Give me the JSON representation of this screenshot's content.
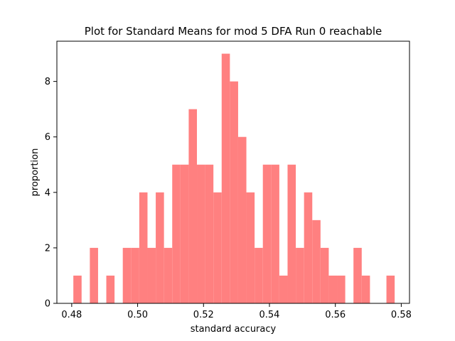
{
  "chart_data": {
    "type": "bar",
    "title": "Plot for Standard Means for  mod 5  DFA Run 0  reachable",
    "xlabel": "standard accuracy",
    "ylabel": "proportion",
    "xlim": [
      0.4755,
      0.5825
    ],
    "ylim": [
      0,
      9.45
    ],
    "xticks": [
      0.48,
      0.5,
      0.52,
      0.54,
      0.56,
      0.58
    ],
    "xtick_labels": [
      "0.48",
      "0.50",
      "0.52",
      "0.54",
      "0.56",
      "0.58"
    ],
    "yticks": [
      0,
      2,
      4,
      6,
      8
    ],
    "ytick_labels": [
      "0",
      "2",
      "4",
      "6",
      "8"
    ],
    "color": "#ff8080",
    "grid": false,
    "bin_edges": [
      0.4805,
      0.483,
      0.4855,
      0.488,
      0.4905,
      0.493,
      0.4955,
      0.498,
      0.5005,
      0.503,
      0.5055,
      0.508,
      0.5105,
      0.513,
      0.5155,
      0.518,
      0.5205,
      0.523,
      0.5255,
      0.528,
      0.5305,
      0.533,
      0.5355,
      0.538,
      0.5405,
      0.543,
      0.5455,
      0.548,
      0.5505,
      0.553,
      0.5555,
      0.558,
      0.5605,
      0.563,
      0.5655,
      0.568,
      0.5705,
      0.573,
      0.5755,
      0.578,
      0.5805
    ],
    "values": [
      1,
      0,
      2,
      0,
      1,
      0,
      2,
      2,
      4,
      2,
      4,
      2,
      5,
      5,
      7,
      5,
      5,
      4,
      9,
      8,
      6,
      4,
      2,
      5,
      5,
      1,
      5,
      2,
      4,
      3,
      2,
      1,
      1,
      0,
      2,
      1,
      0,
      0,
      1,
      0
    ]
  }
}
